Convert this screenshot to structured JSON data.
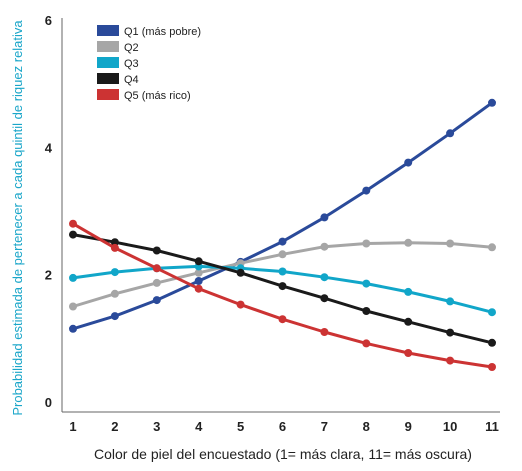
{
  "chart_data": {
    "type": "line",
    "x": [
      1,
      2,
      3,
      4,
      5,
      6,
      7,
      8,
      9,
      10,
      11
    ],
    "xlabel": "Color de piel del encuestado (1= más clara, 11= más oscura)",
    "ylabel": "Probabilidad estimada de pertenecer a cada quintil de riquez relativa",
    "xlim": [
      1,
      11
    ],
    "ylim": [
      0,
      6
    ],
    "x_ticks": [
      "1",
      "2",
      "3",
      "4",
      "5",
      "6",
      "7",
      "8",
      "9",
      "10",
      "11"
    ],
    "y_ticks": [
      "0",
      "2",
      "4",
      "6"
    ],
    "grid": false,
    "legend_position": "top-left",
    "series": [
      {
        "name": "Q1 (más pobre)",
        "color": "#2a4a9a",
        "values": [
          1.15,
          1.35,
          1.6,
          1.9,
          2.2,
          2.52,
          2.9,
          3.32,
          3.76,
          4.22,
          4.7
        ]
      },
      {
        "name": "Q2",
        "color": "#a6a6a6",
        "values": [
          1.5,
          1.7,
          1.87,
          2.03,
          2.18,
          2.32,
          2.44,
          2.49,
          2.5,
          2.49,
          2.43
        ]
      },
      {
        "name": "Q3",
        "color": "#11a6c9",
        "values": [
          1.95,
          2.04,
          2.1,
          2.13,
          2.1,
          2.05,
          1.96,
          1.86,
          1.73,
          1.58,
          1.41
        ]
      },
      {
        "name": "Q4",
        "color": "#1a1a1a",
        "values": [
          2.63,
          2.51,
          2.38,
          2.21,
          2.03,
          1.82,
          1.63,
          1.43,
          1.26,
          1.09,
          0.93
        ]
      },
      {
        "name": "Q5 (más rico)",
        "color": "#cc3333",
        "values": [
          2.8,
          2.42,
          2.1,
          1.78,
          1.53,
          1.3,
          1.1,
          0.92,
          0.77,
          0.65,
          0.55
        ]
      }
    ]
  }
}
